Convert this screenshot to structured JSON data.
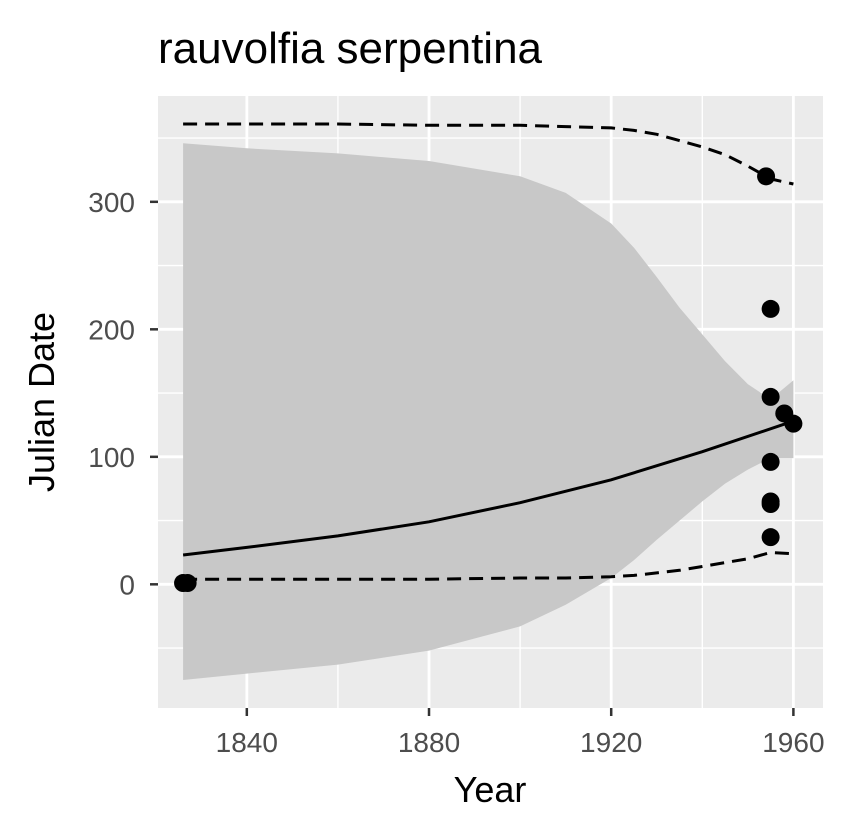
{
  "chart_data": {
    "type": "scatter",
    "title": "rauvolfia serpentina",
    "xlabel": "Year",
    "ylabel": "Julian Date",
    "xlim": [
      1820.5,
      1966.5
    ],
    "ylim": [
      -97,
      383
    ],
    "x_ticks": [
      1840,
      1880,
      1920,
      1960
    ],
    "y_ticks": [
      0,
      100,
      200,
      300
    ],
    "grid": true,
    "legend": "none",
    "colors": {
      "panel": "#ebebeb",
      "grid": "#ffffff",
      "ribbon": "#c8c8c8",
      "points": "#000000",
      "lines": "#000000"
    },
    "points": [
      {
        "x": 1826,
        "y": 1
      },
      {
        "x": 1827,
        "y": 1
      },
      {
        "x": 1954,
        "y": 320
      },
      {
        "x": 1955,
        "y": 216
      },
      {
        "x": 1955,
        "y": 147
      },
      {
        "x": 1955,
        "y": 96
      },
      {
        "x": 1955,
        "y": 65
      },
      {
        "x": 1955,
        "y": 63
      },
      {
        "x": 1955,
        "y": 37
      },
      {
        "x": 1958,
        "y": 134
      },
      {
        "x": 1960,
        "y": 126
      }
    ],
    "fit_line": {
      "x": [
        1826,
        1840,
        1860,
        1880,
        1900,
        1920,
        1940,
        1960
      ],
      "y": [
        23,
        29,
        38,
        49,
        64,
        82,
        104,
        128
      ]
    },
    "ribbon": {
      "x": [
        1826,
        1840,
        1860,
        1880,
        1900,
        1910,
        1920,
        1925,
        1930,
        1935,
        1940,
        1945,
        1950,
        1955,
        1960
      ],
      "upper": [
        346,
        342,
        338,
        332,
        320,
        307,
        283,
        264,
        241,
        217,
        196,
        175,
        157,
        145,
        160
      ],
      "lower": [
        -75,
        -70,
        -63,
        -52,
        -33,
        -16,
        5,
        19,
        35,
        50,
        65,
        79,
        90,
        99,
        99
      ]
    },
    "upper_dashed": {
      "x": [
        1826,
        1840,
        1860,
        1880,
        1900,
        1910,
        1920,
        1925,
        1930,
        1935,
        1940,
        1945,
        1950,
        1955,
        1960
      ],
      "y": [
        361,
        361,
        361,
        360,
        360,
        359,
        358,
        356,
        353,
        348,
        343,
        337,
        328,
        318,
        314
      ]
    },
    "lower_dashed": {
      "x": [
        1826,
        1840,
        1860,
        1880,
        1900,
        1910,
        1920,
        1925,
        1930,
        1935,
        1940,
        1945,
        1950,
        1955,
        1960
      ],
      "y": [
        4,
        4,
        4,
        4,
        5,
        5,
        6,
        7,
        9,
        11,
        14,
        17,
        20,
        25,
        24
      ]
    }
  }
}
